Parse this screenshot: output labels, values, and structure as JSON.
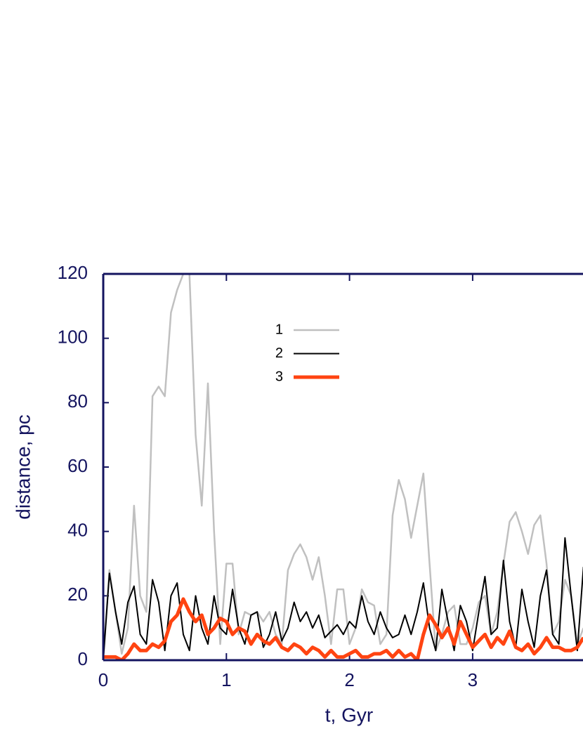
{
  "chart_data": {
    "type": "line",
    "x_label": "t, Gyr",
    "y_label": "distance, pc",
    "x": [
      0,
      0.05,
      0.1,
      0.15,
      0.2,
      0.25,
      0.3,
      0.35,
      0.4,
      0.45,
      0.5,
      0.55,
      0.6,
      0.65,
      0.7,
      0.75,
      0.8,
      0.85,
      0.9,
      0.95,
      1,
      1.05,
      1.1,
      1.15,
      1.2,
      1.25,
      1.3,
      1.35,
      1.4,
      1.45,
      1.5,
      1.55,
      1.6,
      1.65,
      1.7,
      1.75,
      1.8,
      1.85,
      1.9,
      1.95,
      2,
      2.05,
      2.1,
      2.15,
      2.2,
      2.25,
      2.3,
      2.35,
      2.4,
      2.45,
      2.5,
      2.55,
      2.6,
      2.65,
      2.7,
      2.75,
      2.8,
      2.85,
      2.9,
      2.95,
      3,
      3.05,
      3.1,
      3.15,
      3.2,
      3.25,
      3.3,
      3.35,
      3.4,
      3.45,
      3.5,
      3.55,
      3.6,
      3.65,
      3.7,
      3.75,
      3.8,
      3.85,
      3.9
    ],
    "series": [
      {
        "name": "1",
        "color": "#c0c0c0",
        "width": 2.5,
        "values": [
          0,
          28,
          15,
          2,
          10,
          48,
          20,
          15,
          82,
          85,
          82,
          108,
          115,
          120,
          120,
          70,
          48,
          86,
          40,
          5,
          30,
          30,
          8,
          15,
          14,
          15,
          12,
          15,
          8,
          5,
          28,
          33,
          36,
          32,
          25,
          32,
          20,
          5,
          22,
          22,
          5,
          10,
          22,
          18,
          17,
          5,
          8,
          45,
          56,
          50,
          38,
          48,
          58,
          30,
          3,
          8,
          15,
          17,
          5,
          5,
          10,
          18,
          20,
          8,
          15,
          30,
          43,
          46,
          40,
          33,
          42,
          45,
          30,
          8,
          12,
          25,
          20,
          5,
          10
        ]
      },
      {
        "name": "2",
        "color": "#000000",
        "width": 2,
        "values": [
          0,
          27,
          15,
          5,
          18,
          23,
          8,
          5,
          25,
          18,
          3,
          20,
          24,
          8,
          3,
          20,
          10,
          5,
          20,
          10,
          8,
          22,
          10,
          5,
          14,
          15,
          4,
          8,
          15,
          6,
          10,
          18,
          12,
          15,
          10,
          14,
          7,
          9,
          11,
          8,
          12,
          10,
          20,
          12,
          8,
          15,
          10,
          7,
          8,
          14,
          8,
          15,
          24,
          10,
          3,
          22,
          12,
          3,
          17,
          12,
          3,
          15,
          26,
          8,
          10,
          31,
          12,
          4,
          22,
          12,
          4,
          20,
          28,
          8,
          5,
          38,
          20,
          3,
          29
        ]
      },
      {
        "name": "3",
        "color": "#ff4411",
        "width": 5,
        "values": [
          1,
          1,
          1,
          0,
          2,
          5,
          3,
          3,
          5,
          4,
          6,
          12,
          14,
          19,
          15,
          12,
          14,
          8,
          10,
          13,
          12,
          8,
          10,
          9,
          5,
          8,
          6,
          5,
          7,
          4,
          3,
          5,
          4,
          2,
          4,
          3,
          1,
          3,
          1,
          1,
          2,
          3,
          1,
          1,
          2,
          2,
          3,
          1,
          3,
          1,
          2,
          0,
          8,
          14,
          11,
          7,
          10,
          5,
          12,
          8,
          4,
          6,
          8,
          4,
          7,
          5,
          9,
          4,
          3,
          5,
          2,
          4,
          7,
          4,
          4,
          3,
          3,
          4,
          7
        ]
      }
    ],
    "xlim": [
      0,
      3.9
    ],
    "ylim": [
      0,
      120
    ],
    "xticks": [
      0,
      1,
      2,
      3
    ],
    "yticks": [
      0,
      20,
      40,
      60,
      80,
      100,
      120
    ]
  }
}
